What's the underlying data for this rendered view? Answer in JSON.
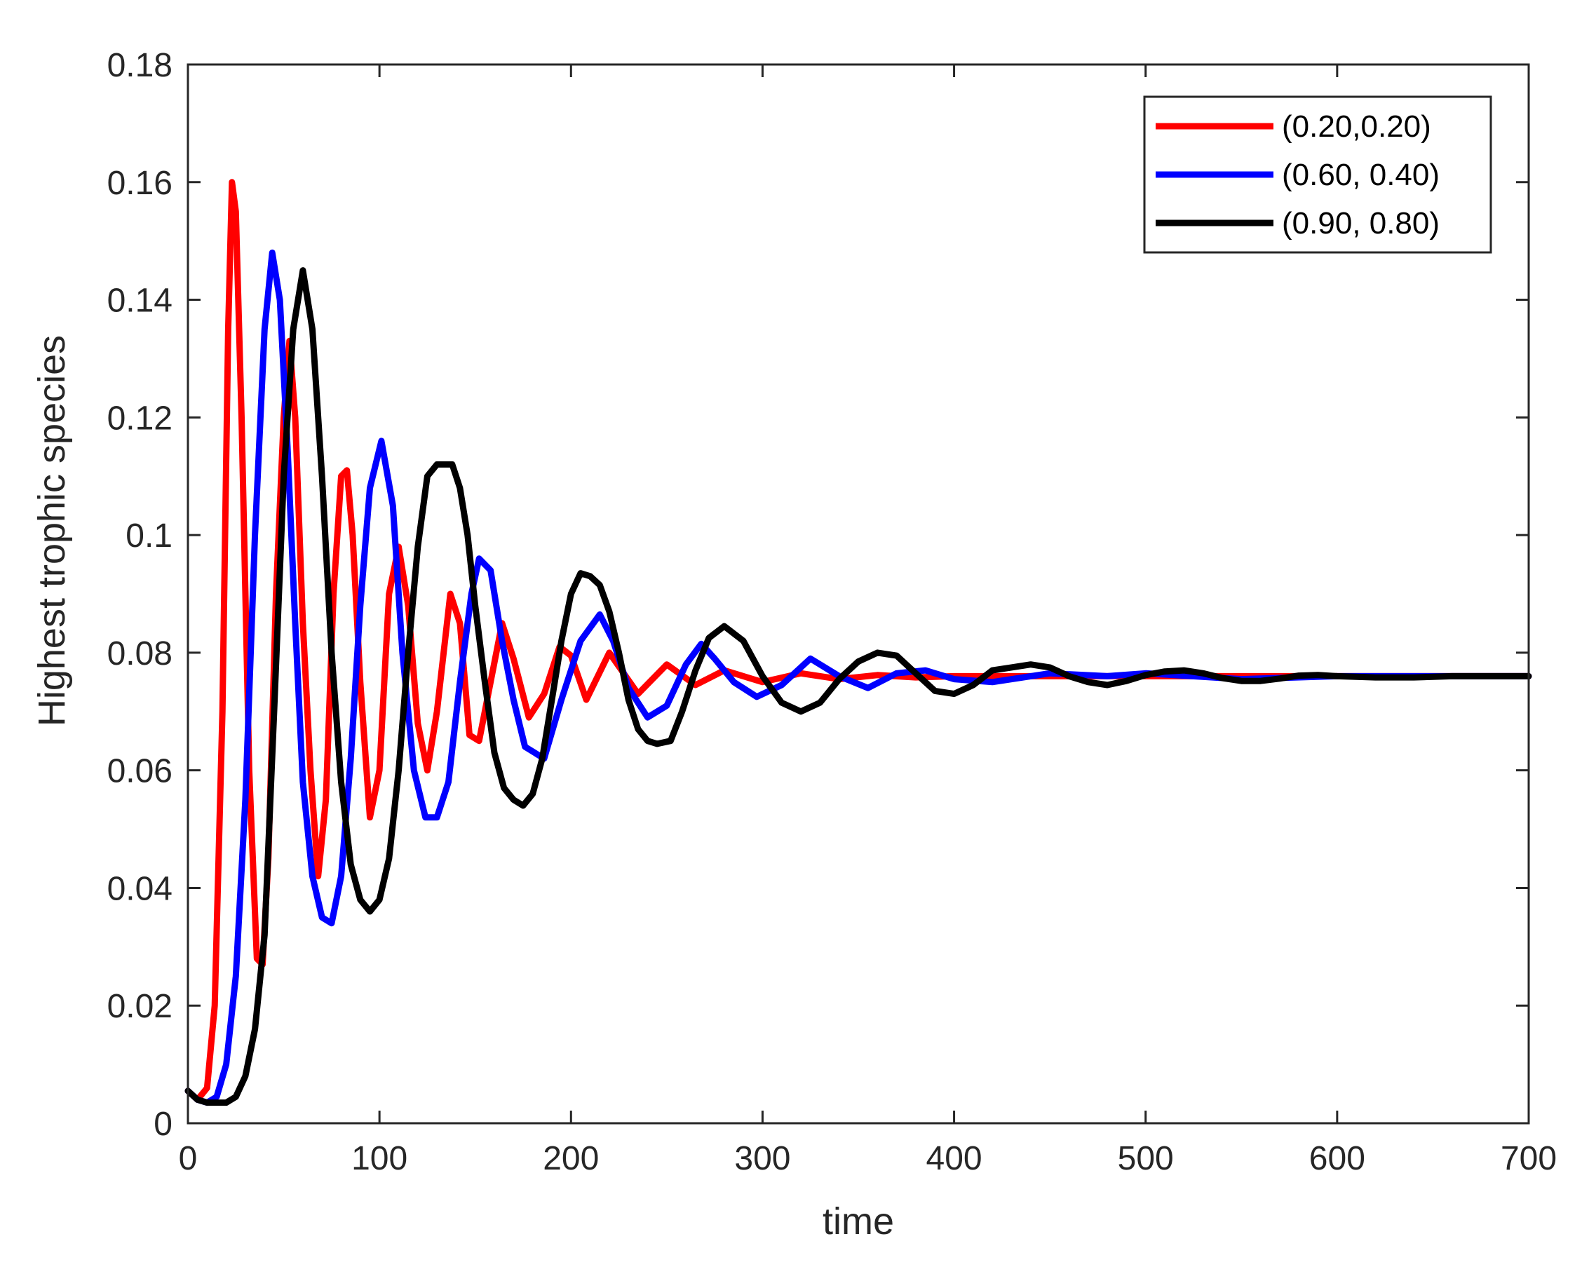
{
  "chart_data": {
    "type": "line",
    "title": "",
    "xlabel": "time",
    "ylabel": "Highest trophic species",
    "xlim": [
      0,
      700
    ],
    "ylim": [
      0,
      0.18
    ],
    "xticks": [
      "0",
      "100",
      "200",
      "300",
      "400",
      "500",
      "600",
      "700"
    ],
    "yticks": [
      "0",
      "0.02",
      "0.04",
      "0.06",
      "0.08",
      "0.1",
      "0.12",
      "0.14",
      "0.16",
      "0.18"
    ],
    "grid": false,
    "legend_position": "top-right",
    "series": [
      {
        "name": "(0.20,0.20)",
        "color": "#ff0000",
        "x": [
          0,
          5,
          10,
          14,
          18,
          21,
          23,
          25,
          28,
          32,
          36,
          39,
          42,
          46,
          50,
          53,
          56,
          60,
          64,
          68,
          72,
          76,
          80,
          83,
          86,
          90,
          95,
          100,
          105,
          110,
          115,
          120,
          125,
          130,
          137,
          142,
          147,
          152,
          158,
          164,
          170,
          178,
          186,
          194,
          200,
          208,
          220,
          235,
          250,
          265,
          280,
          300,
          320,
          340,
          360,
          380,
          400,
          450,
          500,
          550,
          600,
          650,
          700
        ],
        "y": [
          0.0055,
          0.004,
          0.006,
          0.02,
          0.07,
          0.135,
          0.16,
          0.155,
          0.12,
          0.06,
          0.028,
          0.027,
          0.045,
          0.09,
          0.12,
          0.133,
          0.12,
          0.085,
          0.06,
          0.042,
          0.055,
          0.09,
          0.11,
          0.111,
          0.1,
          0.075,
          0.052,
          0.06,
          0.09,
          0.098,
          0.088,
          0.068,
          0.06,
          0.07,
          0.09,
          0.085,
          0.066,
          0.065,
          0.075,
          0.085,
          0.079,
          0.069,
          0.073,
          0.081,
          0.0795,
          0.072,
          0.08,
          0.073,
          0.078,
          0.0745,
          0.077,
          0.075,
          0.0765,
          0.0755,
          0.0762,
          0.0758,
          0.076,
          0.076,
          0.076,
          0.076,
          0.076,
          0.076,
          0.076
        ]
      },
      {
        "name": "(0.60, 0.40)",
        "color": "#0000ff",
        "x": [
          0,
          5,
          10,
          15,
          20,
          25,
          30,
          35,
          40,
          44,
          48,
          52,
          56,
          60,
          65,
          70,
          75,
          80,
          85,
          90,
          95,
          101,
          107,
          112,
          118,
          124,
          130,
          136,
          142,
          148,
          152,
          158,
          164,
          170,
          176,
          186,
          195,
          205,
          215,
          222,
          230,
          240,
          250,
          260,
          268,
          275,
          285,
          297,
          310,
          325,
          340,
          355,
          370,
          385,
          400,
          420,
          450,
          480,
          500,
          550,
          600,
          650,
          700
        ],
        "y": [
          0.0055,
          0.004,
          0.0035,
          0.0045,
          0.01,
          0.025,
          0.055,
          0.1,
          0.135,
          0.148,
          0.14,
          0.115,
          0.085,
          0.058,
          0.042,
          0.035,
          0.034,
          0.042,
          0.062,
          0.088,
          0.108,
          0.116,
          0.105,
          0.08,
          0.06,
          0.052,
          0.052,
          0.058,
          0.075,
          0.09,
          0.096,
          0.094,
          0.082,
          0.072,
          0.064,
          0.062,
          0.072,
          0.082,
          0.0865,
          0.082,
          0.074,
          0.069,
          0.071,
          0.078,
          0.0815,
          0.079,
          0.075,
          0.0725,
          0.0745,
          0.079,
          0.076,
          0.074,
          0.0765,
          0.077,
          0.0755,
          0.075,
          0.0765,
          0.076,
          0.0765,
          0.0755,
          0.076,
          0.076,
          0.076
        ]
      },
      {
        "name": "(0.90, 0.80)",
        "color": "#000000",
        "x": [
          0,
          5,
          10,
          15,
          20,
          25,
          30,
          35,
          40,
          45,
          50,
          55,
          60,
          65,
          70,
          75,
          80,
          85,
          90,
          95,
          100,
          105,
          110,
          115,
          120,
          125,
          130,
          135,
          138,
          142,
          146,
          150,
          155,
          160,
          165,
          170,
          175,
          180,
          185,
          190,
          195,
          200,
          205,
          210,
          215,
          220,
          225,
          230,
          235,
          240,
          245,
          252,
          258,
          265,
          272,
          280,
          290,
          300,
          310,
          320,
          330,
          340,
          350,
          360,
          370,
          380,
          390,
          400,
          410,
          420,
          430,
          440,
          450,
          460,
          470,
          480,
          490,
          500,
          510,
          520,
          530,
          540,
          550,
          560,
          570,
          580,
          590,
          600,
          620,
          640,
          660,
          680,
          700
        ],
        "y": [
          0.0055,
          0.004,
          0.0035,
          0.0035,
          0.0035,
          0.0045,
          0.008,
          0.016,
          0.032,
          0.07,
          0.11,
          0.135,
          0.145,
          0.135,
          0.11,
          0.08,
          0.058,
          0.044,
          0.038,
          0.036,
          0.038,
          0.045,
          0.06,
          0.08,
          0.098,
          0.11,
          0.112,
          0.112,
          0.112,
          0.108,
          0.1,
          0.088,
          0.075,
          0.063,
          0.057,
          0.055,
          0.054,
          0.056,
          0.062,
          0.072,
          0.082,
          0.09,
          0.0935,
          0.093,
          0.0915,
          0.087,
          0.08,
          0.072,
          0.067,
          0.065,
          0.0645,
          0.065,
          0.07,
          0.077,
          0.0825,
          0.0845,
          0.082,
          0.076,
          0.0715,
          0.07,
          0.0715,
          0.0755,
          0.0785,
          0.08,
          0.0795,
          0.0765,
          0.0735,
          0.073,
          0.0745,
          0.077,
          0.0775,
          0.078,
          0.0775,
          0.076,
          0.075,
          0.0745,
          0.0752,
          0.0762,
          0.0768,
          0.077,
          0.0765,
          0.0757,
          0.0752,
          0.0752,
          0.0756,
          0.0761,
          0.0762,
          0.076,
          0.0758,
          0.0758,
          0.076,
          0.076,
          0.076
        ]
      }
    ]
  }
}
